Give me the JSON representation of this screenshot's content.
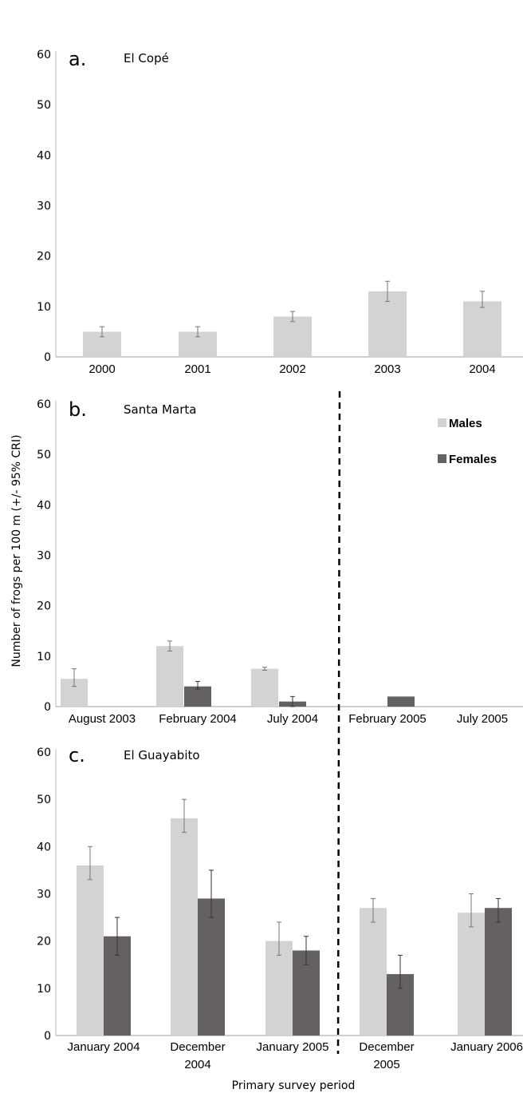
{
  "ylabel": "Number of frogs per 100 m (+/- 95% CRI)",
  "xlabel": "Primary survey period",
  "legend": {
    "position": "top-right of panel b",
    "males_label": "Males",
    "females_label": "Females",
    "males_color": "#d3d3d3",
    "females_color": "#666161"
  },
  "chart_data": [
    {
      "type": "bar",
      "letter": "a.",
      "title": "El Copé",
      "categories": [
        "2000",
        "2001",
        "2002",
        "2003",
        "2004"
      ],
      "ylim": [
        0,
        60
      ],
      "yticks": [
        0,
        10,
        20,
        30,
        40,
        50,
        60
      ],
      "series": [
        {
          "name": "Males",
          "values": [
            5,
            5,
            8,
            13,
            11
          ],
          "ci_low": [
            4,
            4,
            7,
            11,
            9.8
          ],
          "ci_high": [
            6,
            6,
            9,
            15,
            13
          ]
        }
      ]
    },
    {
      "type": "bar",
      "letter": "b.",
      "title": "Santa Marta",
      "categories": [
        "August 2003",
        "February 2004",
        "July 2004",
        "February 2005",
        "July 2005"
      ],
      "ylim": [
        0,
        60
      ],
      "yticks": [
        0,
        10,
        20,
        30,
        40,
        50,
        60
      ],
      "divider_after_index": 2,
      "series": [
        {
          "name": "Males",
          "values": [
            5.5,
            12,
            7.5,
            null,
            null
          ],
          "ci_low": [
            4,
            11,
            7.2,
            null,
            null
          ],
          "ci_high": [
            7.5,
            13,
            7.8,
            null,
            null
          ]
        },
        {
          "name": "Females",
          "values": [
            null,
            4,
            1,
            2,
            null
          ],
          "ci_low": [
            null,
            3.5,
            0,
            2,
            null
          ],
          "ci_high": [
            null,
            5,
            2,
            2,
            null
          ]
        }
      ]
    },
    {
      "type": "bar",
      "letter": "c.",
      "title": "El Guayabito",
      "categories": [
        "January 2004",
        "December 2004",
        "January 2005",
        "December 2005",
        "January 2006"
      ],
      "ylim": [
        0,
        60
      ],
      "yticks": [
        0,
        10,
        20,
        30,
        40,
        50,
        60
      ],
      "divider_after_index": 2,
      "series": [
        {
          "name": "Males",
          "values": [
            36,
            46,
            20,
            27,
            26
          ],
          "ci_low": [
            33,
            43,
            17,
            24,
            23
          ],
          "ci_high": [
            40,
            50,
            24,
            29,
            30
          ]
        },
        {
          "name": "Females",
          "values": [
            21,
            29,
            18,
            13,
            27
          ],
          "ci_low": [
            17,
            25,
            15,
            10,
            24
          ],
          "ci_high": [
            25,
            35,
            21,
            17,
            29
          ]
        }
      ]
    }
  ]
}
